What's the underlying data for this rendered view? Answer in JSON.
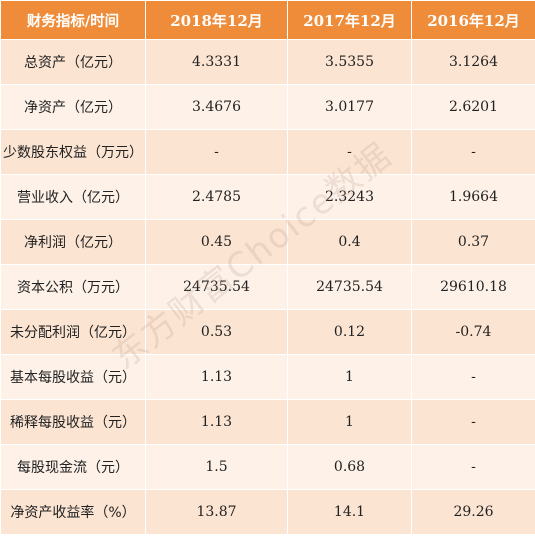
{
  "header": {
    "label": "财务指标/时间",
    "years": [
      "2018年12月",
      "2017年12月",
      "2016年12月"
    ]
  },
  "rows": [
    {
      "label": "总资产（亿元）",
      "values": [
        "4.3331",
        "3.5355",
        "3.1264"
      ]
    },
    {
      "label": "净资产（亿元）",
      "values": [
        "3.4676",
        "3.0177",
        "2.6201"
      ]
    },
    {
      "label": "少数股东权益（万元）",
      "values": [
        "-",
        "-",
        "-"
      ]
    },
    {
      "label": "营业收入（亿元）",
      "values": [
        "2.4785",
        "2.3243",
        "1.9664"
      ]
    },
    {
      "label": "净利润（亿元）",
      "values": [
        "0.45",
        "0.4",
        "0.37"
      ]
    },
    {
      "label": "资本公积（万元）",
      "values": [
        "24735.54",
        "24735.54",
        "29610.18"
      ]
    },
    {
      "label": "未分配利润（亿元）",
      "values": [
        "0.53",
        "0.12",
        "-0.74"
      ]
    },
    {
      "label": "基本每股收益（元）",
      "values": [
        "1.13",
        "1",
        "-"
      ]
    },
    {
      "label": "稀释每股收益（元）",
      "values": [
        "1.13",
        "1",
        "-"
      ]
    },
    {
      "label": "每股现金流（元）",
      "values": [
        "1.5",
        "0.68",
        "-"
      ]
    },
    {
      "label": "净资产收益率（%）",
      "values": [
        "13.87",
        "14.1",
        "29.26"
      ]
    }
  ],
  "watermark": "东方财富Choice数据"
}
